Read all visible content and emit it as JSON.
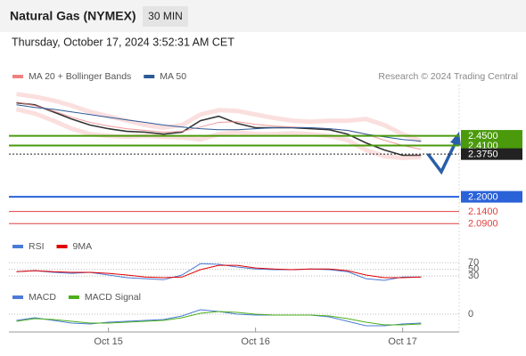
{
  "header": {
    "title": "Natural Gas (NYMEX)",
    "timeframe": "30 MIN",
    "datetime": "Thursday, October 17, 2024 3:52:31 AM CET",
    "credit": "Research © 2024 Trading Central"
  },
  "chart_data": [
    {
      "type": "line",
      "ylim": [
        2.04,
        2.66
      ],
      "series": [
        {
          "color": "#333333",
          "values": [
            2.585,
            2.577,
            2.548,
            2.519,
            2.494,
            2.479,
            2.468,
            2.465,
            2.457,
            2.465,
            2.512,
            2.53,
            2.501,
            2.483,
            2.483,
            2.483,
            2.479,
            2.475,
            2.457,
            2.421,
            2.392,
            2.37,
            2.37
          ]
        },
        {
          "name": "MA 20 + Bollinger Bands",
          "color": "#f08080",
          "values": [
            2.588,
            2.574,
            2.552,
            2.526,
            2.505,
            2.49,
            2.479,
            2.472,
            2.465,
            2.468,
            2.486,
            2.505,
            2.508,
            2.497,
            2.49,
            2.486,
            2.483,
            2.479,
            2.472,
            2.457,
            2.432,
            2.41,
            2.395
          ],
          "upper": [
            2.621,
            2.61,
            2.595,
            2.574,
            2.548,
            2.53,
            2.512,
            2.494,
            2.483,
            2.494,
            2.537,
            2.555,
            2.552,
            2.537,
            2.523,
            2.512,
            2.508,
            2.512,
            2.512,
            2.519,
            2.494,
            2.457,
            2.428
          ],
          "lower": [
            2.559,
            2.541,
            2.512,
            2.479,
            2.457,
            2.45,
            2.446,
            2.45,
            2.446,
            2.443,
            2.435,
            2.457,
            2.465,
            2.457,
            2.457,
            2.461,
            2.457,
            2.45,
            2.432,
            2.392,
            2.366,
            2.359,
            2.363
          ]
        },
        {
          "name": "MA 50",
          "color": "#2c5a96",
          "values": [
            2.577,
            2.566,
            2.559,
            2.548,
            2.537,
            2.526,
            2.515,
            2.505,
            2.494,
            2.486,
            2.479,
            2.475,
            2.475,
            2.479,
            2.483,
            2.483,
            2.483,
            2.479,
            2.472,
            2.457,
            2.446,
            2.435,
            2.428
          ]
        }
      ],
      "levels": [
        {
          "value": 2.45,
          "label": "2.4500",
          "color": "#4a9a0c",
          "box": true
        },
        {
          "value": 2.41,
          "label": "2.4100",
          "color": "#4a9a0c",
          "box": true
        },
        {
          "value": 2.375,
          "label": "2.3750",
          "color": "#222222",
          "box": true
        },
        {
          "value": 2.2,
          "label": "2.2000",
          "color": "#2a62d8",
          "box": true
        },
        {
          "value": 2.14,
          "label": "2.1400",
          "color": "#e04040",
          "box": false
        },
        {
          "value": 2.09,
          "label": "2.0900",
          "color": "#e04040",
          "box": false
        }
      ]
    },
    {
      "type": "line",
      "ylim": [
        9,
        89
      ],
      "yticks": [
        70,
        50,
        30
      ],
      "series": [
        {
          "name": "RSI",
          "color": "#4a7bd6",
          "values": [
            43,
            46,
            41,
            38,
            41,
            33,
            25,
            22,
            19,
            33,
            67,
            65,
            57,
            51,
            49,
            49,
            51,
            49,
            43,
            22,
            17,
            27,
            27
          ]
        },
        {
          "name": "9MA",
          "color": "#e00000",
          "values": [
            43,
            46,
            43,
            41,
            41,
            38,
            33,
            27,
            25,
            27,
            49,
            62,
            62,
            54,
            51,
            49,
            51,
            51,
            46,
            33,
            25,
            25,
            27
          ]
        }
      ]
    },
    {
      "type": "line",
      "ylim": [
        -0.017,
        0.013
      ],
      "yticks": [
        0
      ],
      "categories": [
        null,
        null,
        null,
        null,
        null,
        "Oct 15",
        null,
        null,
        null,
        null,
        null,
        null,
        null,
        "Oct 16",
        null,
        null,
        null,
        null,
        null,
        null,
        null,
        "Oct 17",
        null
      ],
      "series": [
        {
          "name": "MACD",
          "color": "#4a7bd6",
          "values": [
            -0.007,
            -0.004,
            -0.007,
            -0.01,
            -0.011,
            -0.009,
            -0.008,
            -0.007,
            -0.006,
            -0.002,
            0.005,
            0.003,
            0,
            -0.001,
            -0.001,
            -0.001,
            -0.001,
            -0.003,
            -0.008,
            -0.013,
            -0.013,
            -0.011,
            -0.01
          ]
        },
        {
          "name": "MACD Signal",
          "color": "#4caf1a",
          "values": [
            -0.008,
            -0.005,
            -0.006,
            -0.008,
            -0.01,
            -0.01,
            -0.009,
            -0.008,
            -0.007,
            -0.004,
            0.001,
            0.003,
            0.002,
            0,
            -0.001,
            -0.001,
            -0.001,
            -0.002,
            -0.005,
            -0.009,
            -0.012,
            -0.012,
            -0.011
          ]
        }
      ]
    }
  ]
}
